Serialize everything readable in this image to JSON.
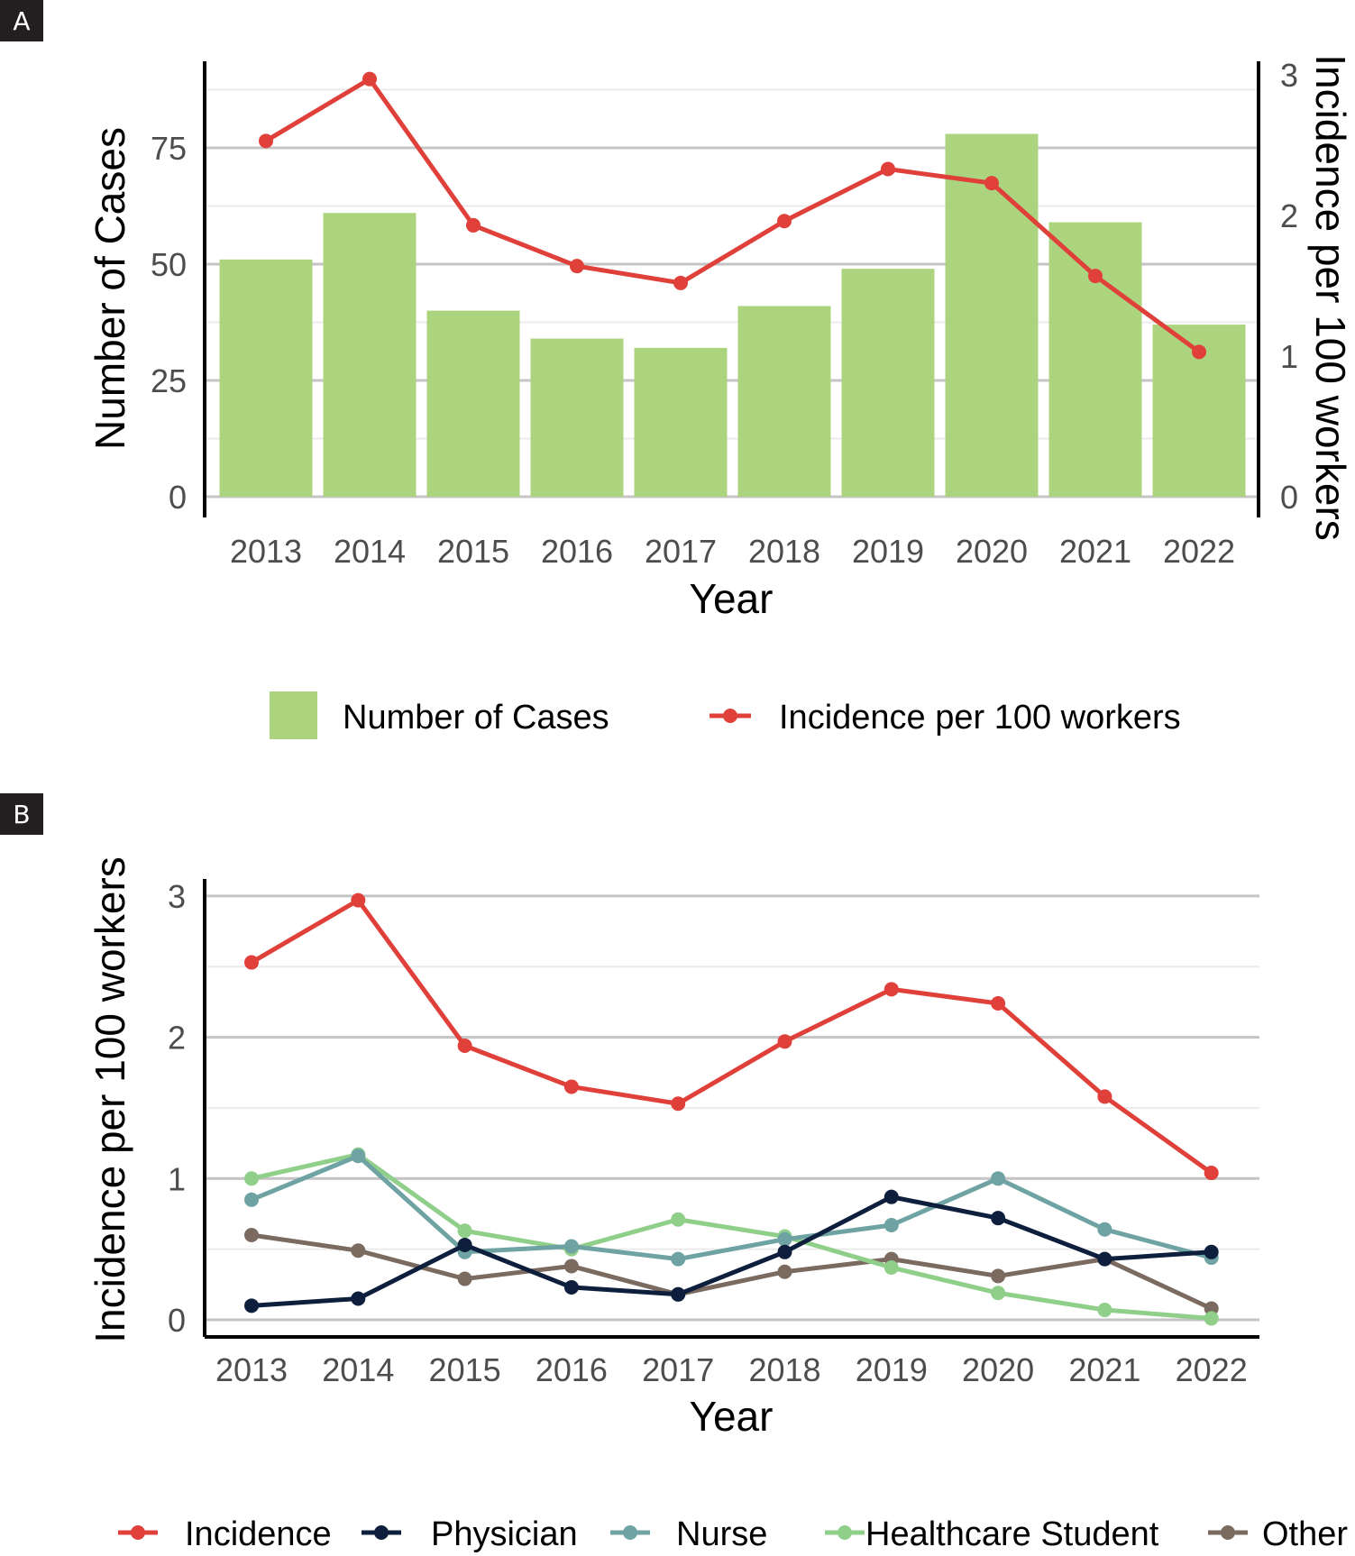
{
  "panels": {
    "a_label": "A",
    "b_label": "B"
  },
  "colors": {
    "bar": "#acd47e",
    "incidence": "#e0403a",
    "physician": "#0d1f3c",
    "nurse": "#6fa3a3",
    "healthcare_student": "#8fcf8a",
    "other": "#7a6a60",
    "grid_major": "#c4c4c4",
    "grid_minor": "#ebebeb",
    "axis": "#000000"
  },
  "chart_data": [
    {
      "id": "panel-a",
      "type": "bar",
      "title": "",
      "xlabel": "Year",
      "ylabel": "Number of Cases",
      "y2label": "Incidence per 100 workers",
      "categories": [
        "2013",
        "2014",
        "2015",
        "2016",
        "2017",
        "2018",
        "2019",
        "2020",
        "2021",
        "2022"
      ],
      "ylim": [
        0,
        93
      ],
      "yticks": [
        0,
        25,
        50,
        75
      ],
      "y2lim": [
        0,
        3.1
      ],
      "y2ticks": [
        0,
        1,
        2,
        3
      ],
      "grid": true,
      "series": [
        {
          "name": "Number of Cases",
          "type": "bar",
          "axis": "left",
          "values": [
            51,
            61,
            40,
            34,
            32,
            41,
            49,
            78,
            59,
            37
          ]
        },
        {
          "name": "Incidence per 100 workers",
          "type": "line",
          "axis": "right",
          "values": [
            2.53,
            2.97,
            1.93,
            1.64,
            1.52,
            1.96,
            2.33,
            2.23,
            1.57,
            1.03
          ]
        }
      ],
      "legend": {
        "position": "bottom",
        "items": [
          {
            "label": "Number of Cases",
            "kind": "swatch",
            "color_key": "bar"
          },
          {
            "label": "Incidence per 100 workers",
            "kind": "line-point",
            "color_key": "incidence"
          }
        ]
      }
    },
    {
      "id": "panel-b",
      "type": "line",
      "title": "",
      "xlabel": "Year",
      "ylabel": "Incidence per 100 workers",
      "categories": [
        "2013",
        "2014",
        "2015",
        "2016",
        "2017",
        "2018",
        "2019",
        "2020",
        "2021",
        "2022"
      ],
      "ylim": [
        0,
        3.12
      ],
      "yticks": [
        0,
        1,
        2,
        3
      ],
      "grid": true,
      "series": [
        {
          "name": "Incidence",
          "color_key": "incidence",
          "values": [
            2.53,
            2.97,
            1.94,
            1.65,
            1.53,
            1.97,
            2.34,
            2.24,
            1.58,
            1.04
          ]
        },
        {
          "name": "Physician",
          "color_key": "physician",
          "values": [
            0.1,
            0.15,
            0.53,
            0.23,
            0.18,
            0.48,
            0.87,
            0.72,
            0.43,
            0.48
          ]
        },
        {
          "name": "Nurse",
          "color_key": "nurse",
          "values": [
            0.85,
            1.16,
            0.48,
            0.52,
            0.43,
            0.57,
            0.67,
            1.0,
            0.64,
            0.44
          ]
        },
        {
          "name": "Healthcare Student",
          "color_key": "healthcare_student",
          "values": [
            1.0,
            1.17,
            0.63,
            0.5,
            0.71,
            0.59,
            0.37,
            0.19,
            0.07,
            0.01
          ]
        },
        {
          "name": "Other",
          "color_key": "other",
          "values": [
            0.6,
            0.49,
            0.29,
            0.38,
            0.18,
            0.34,
            0.43,
            0.31,
            0.43,
            0.08
          ]
        }
      ],
      "legend": {
        "position": "bottom",
        "items": [
          {
            "label": "Incidence",
            "color_key": "incidence"
          },
          {
            "label": "Physician",
            "color_key": "physician"
          },
          {
            "label": "Nurse",
            "color_key": "nurse"
          },
          {
            "label": "Healthcare Student",
            "color_key": "healthcare_student"
          },
          {
            "label": "Other",
            "color_key": "other"
          }
        ]
      }
    }
  ]
}
